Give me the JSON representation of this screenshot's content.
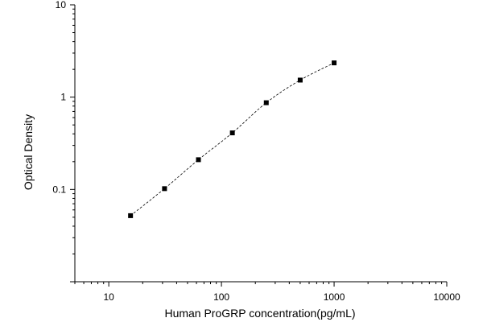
{
  "chart_data": {
    "type": "scatter",
    "title": "",
    "xlabel": "Human ProGRP concentration(pg/mL)",
    "ylabel": "Optical Density",
    "x_scale": "log",
    "y_scale": "log",
    "xlim": [
      5,
      10000
    ],
    "ylim": [
      0.01,
      10
    ],
    "x_ticks": [
      {
        "value": 10,
        "label": "10"
      },
      {
        "value": 100,
        "label": "100"
      },
      {
        "value": 1000,
        "label": "1000"
      },
      {
        "value": 10000,
        "label": "10000"
      }
    ],
    "y_ticks": [
      {
        "value": 0.1,
        "label": "0.1"
      },
      {
        "value": 1,
        "label": "1"
      },
      {
        "value": 10,
        "label": "10"
      }
    ],
    "grid": false,
    "legend": "none",
    "series": [
      {
        "marker": "square",
        "fit_line": "dashed",
        "x": [
          15.6,
          31.25,
          62.5,
          125,
          250,
          500,
          1000
        ],
        "y": [
          0.052,
          0.102,
          0.21,
          0.41,
          0.87,
          1.53,
          2.35
        ]
      }
    ],
    "colors": {
      "marker": "#000000",
      "line": "#000000",
      "axis": "#000000"
    }
  }
}
